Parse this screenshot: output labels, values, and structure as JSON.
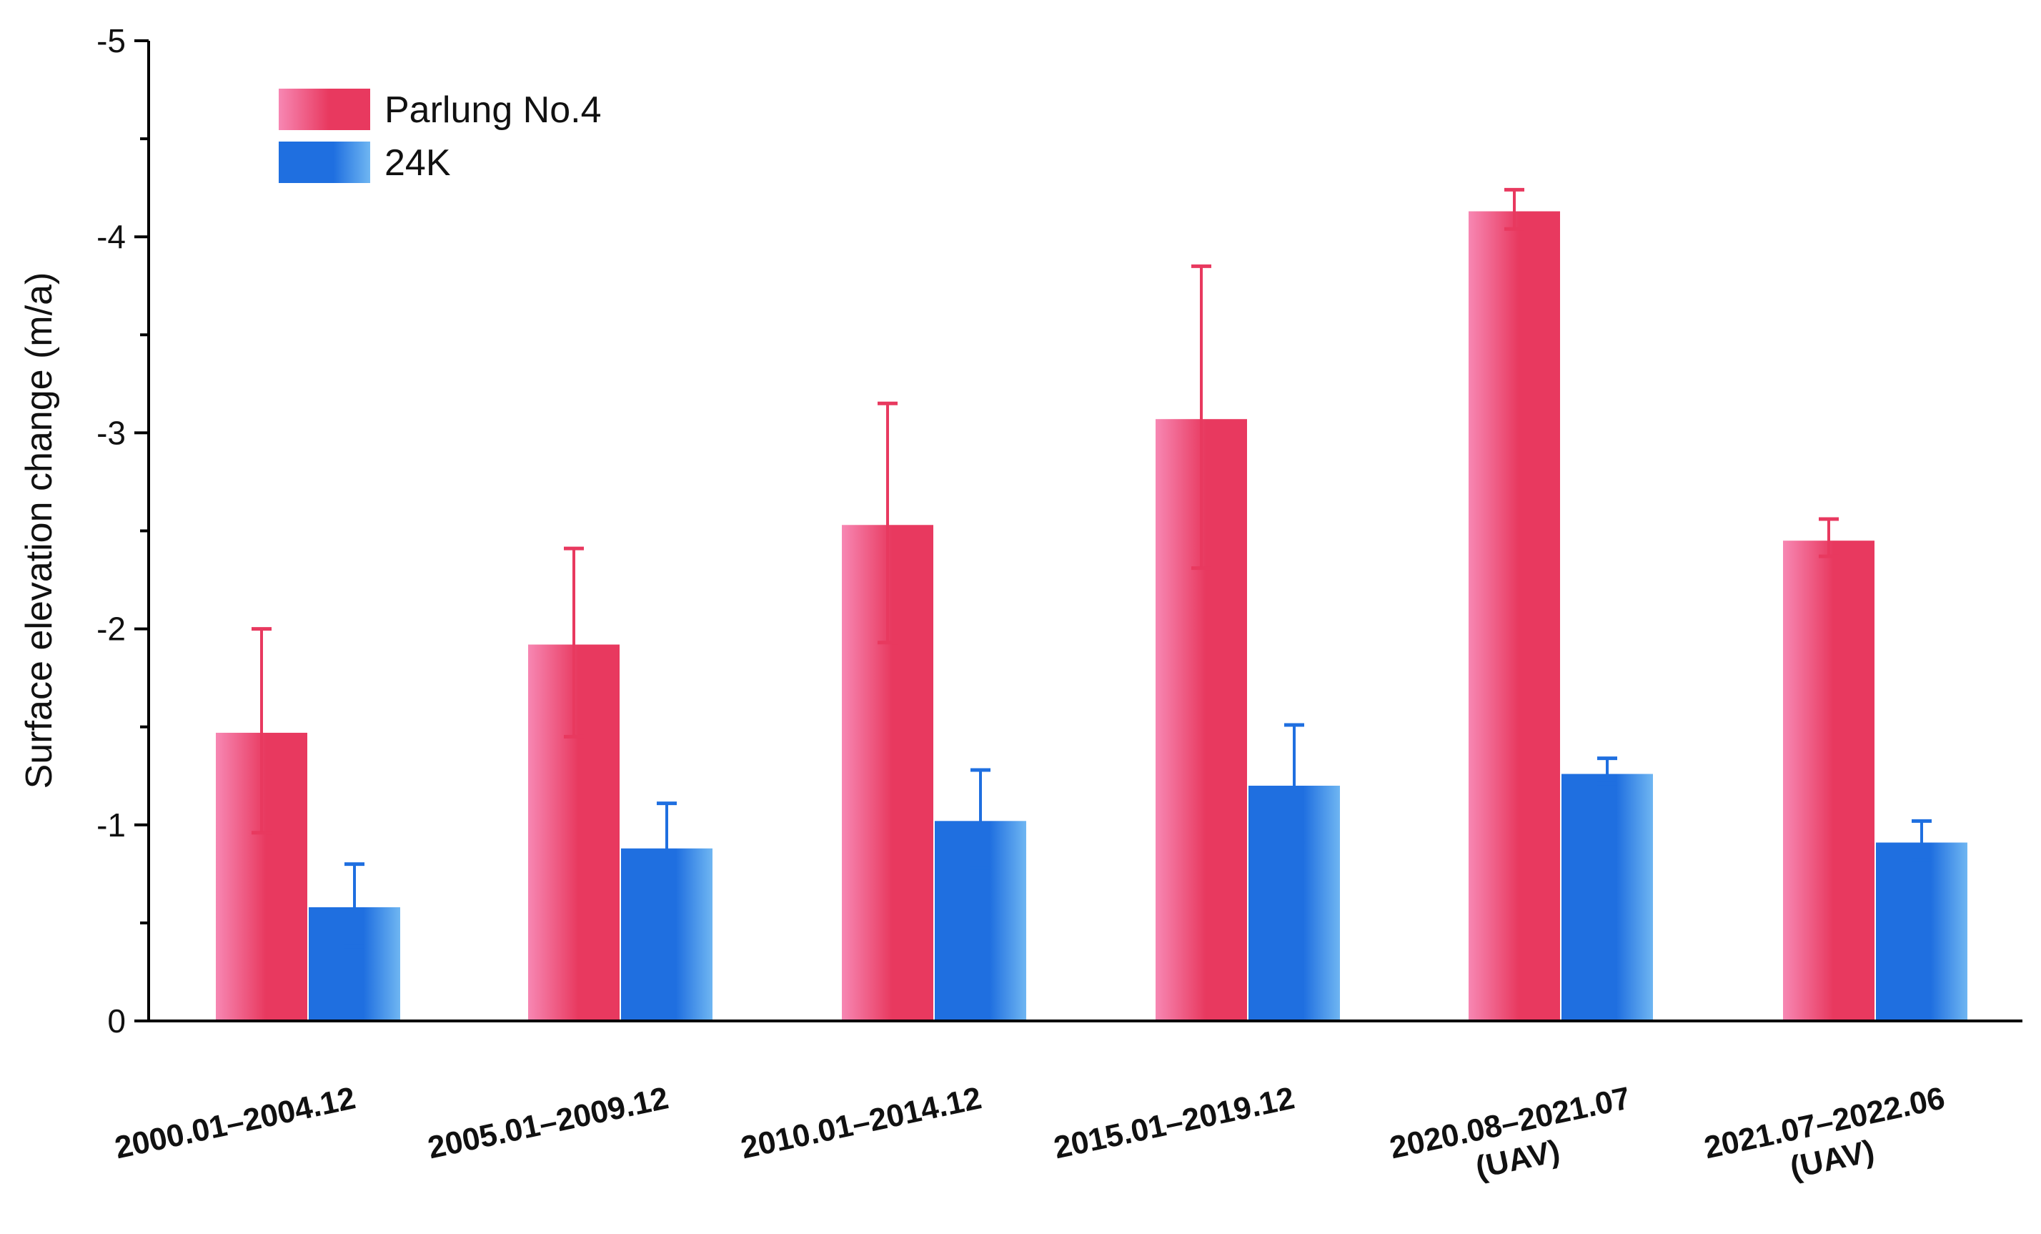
{
  "chart_data": {
    "type": "bar",
    "title": "",
    "xlabel": "",
    "ylabel": "Surface elevation change (m/a)",
    "ylim": [
      0,
      -5
    ],
    "y_axis_inverted": true,
    "yticks": [
      0,
      -1,
      -2,
      -3,
      -4,
      -5
    ],
    "ytick_labels": [
      "0",
      "-1",
      "-2",
      "-3",
      "-4",
      "-5"
    ],
    "categories": [
      [
        "2000.01–2004.12"
      ],
      [
        "2005.01–2009.12"
      ],
      [
        "2010.01–2014.12"
      ],
      [
        "2015.01–2019.12"
      ],
      [
        "2020.08–2021.07",
        "(UAV)"
      ],
      [
        "2021.07–2022.06",
        "(UAV)"
      ]
    ],
    "series": [
      {
        "name": "Parlung No.4",
        "color": "#e8395f",
        "color_light": "#f787b3",
        "values": [
          -1.47,
          -1.92,
          -2.53,
          -3.07,
          -4.13,
          -2.45
        ],
        "error_low": [
          -0.96,
          -1.45,
          -1.93,
          -2.31,
          -4.04,
          -2.37
        ],
        "error_high": [
          -2.0,
          -2.41,
          -3.15,
          -3.85,
          -4.24,
          -2.56
        ]
      },
      {
        "name": "24K",
        "color": "#1f6fe0",
        "color_light": "#6fb6f2",
        "values": [
          -0.58,
          -0.88,
          -1.02,
          -1.2,
          -1.26,
          -0.91
        ],
        "error_low": [
          -0.38,
          -0.66,
          -0.78,
          -0.91,
          -1.21,
          -0.82
        ],
        "error_high": [
          -0.8,
          -1.11,
          -1.28,
          -1.51,
          -1.34,
          -1.02
        ]
      }
    ],
    "legend": "top-left"
  }
}
